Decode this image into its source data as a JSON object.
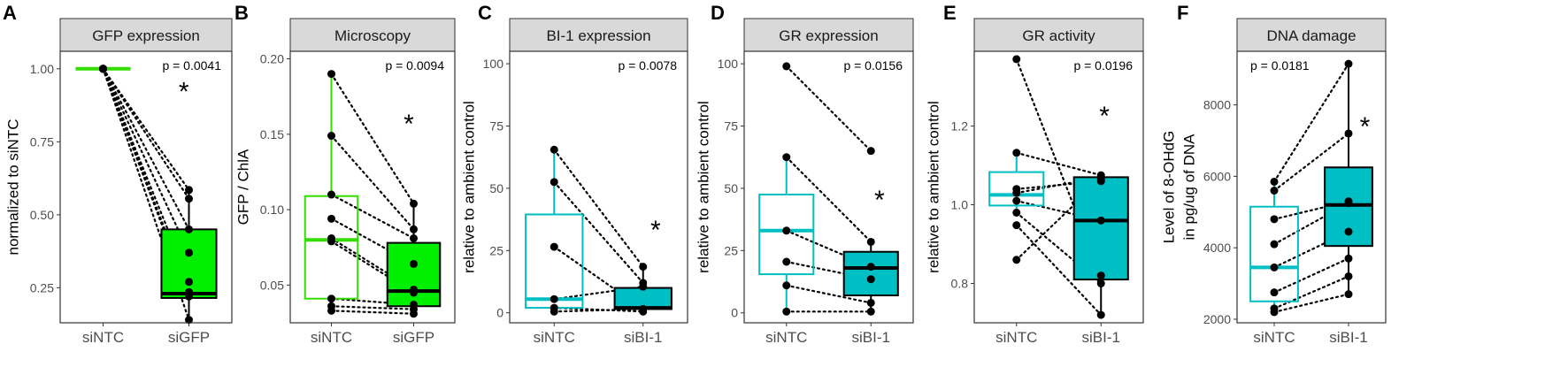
{
  "chart_data": [
    {
      "type": "boxplot",
      "panel_letter": "A",
      "title": "GFP expression",
      "ylabel_lines": [
        "normalized to siNTC"
      ],
      "categories": [
        "siNTC",
        "siGFP"
      ],
      "pvalue": "p = 0.0041",
      "significance": "*",
      "ylim": [
        0.13,
        1.06
      ],
      "yticks": [
        0.25,
        0.5,
        0.75,
        1.0
      ],
      "ytick_labels": [
        "0.25",
        "0.50",
        "0.75",
        "1.00"
      ],
      "fill": [
        "none",
        "#00ee00"
      ],
      "stroke": [
        "#33dd00",
        "#000000"
      ],
      "boxes": [
        {
          "q1": 1.0,
          "median": 1.0,
          "q3": 1.0,
          "min": 1.0,
          "max": 1.0
        },
        {
          "q1": 0.215,
          "median": 0.23,
          "q3": 0.45,
          "min": 0.14,
          "max": 0.585
        }
      ],
      "pairs": [
        [
          1.0,
          0.14
        ],
        [
          1.0,
          0.22
        ],
        [
          1.0,
          0.235
        ],
        [
          1.0,
          0.27
        ],
        [
          1.0,
          0.37
        ],
        [
          1.0,
          0.45
        ],
        [
          1.0,
          0.555
        ],
        [
          1.0,
          0.585
        ]
      ]
    },
    {
      "type": "boxplot",
      "panel_letter": "B",
      "title": "Microscopy",
      "ylabel_lines": [
        "GFP / ChlA"
      ],
      "categories": [
        "siNTC",
        "siGFP"
      ],
      "pvalue": "p = 0.0094",
      "significance": "*",
      "ylim": [
        0.025,
        0.205
      ],
      "yticks": [
        0.05,
        0.1,
        0.15,
        0.2
      ],
      "ytick_labels": [
        "0.05",
        "0.10",
        "0.15",
        "0.20"
      ],
      "fill": [
        "none",
        "#00ee00"
      ],
      "stroke": [
        "#33dd00",
        "#000000"
      ],
      "boxes": [
        {
          "q1": 0.041,
          "median": 0.08,
          "q3": 0.109,
          "min": 0.033,
          "max": 0.19
        },
        {
          "q1": 0.036,
          "median": 0.046,
          "q3": 0.078,
          "min": 0.031,
          "max": 0.104
        }
      ],
      "pairs": [
        [
          0.19,
          0.104
        ],
        [
          0.149,
          0.087
        ],
        [
          0.11,
          0.081
        ],
        [
          0.094,
          0.064
        ],
        [
          0.081,
          0.047
        ],
        [
          0.079,
          0.045
        ],
        [
          0.041,
          0.037
        ],
        [
          0.036,
          0.034
        ],
        [
          0.033,
          0.031
        ]
      ]
    },
    {
      "type": "boxplot",
      "panel_letter": "C",
      "title": "BI-1 expression",
      "ylabel_lines": [
        "relative to ambient control"
      ],
      "categories": [
        "siNTC",
        "siBI-1"
      ],
      "pvalue": "p = 0.0078",
      "significance": "*",
      "ylim": [
        -4,
        105
      ],
      "yticks": [
        0,
        25,
        50,
        75,
        100
      ],
      "ytick_labels": [
        "0",
        "25",
        "50",
        "75",
        "100"
      ],
      "fill": [
        "none",
        "#00bfc4"
      ],
      "stroke": [
        "#00bfc4",
        "#000000"
      ],
      "boxes": [
        {
          "q1": 2,
          "median": 5.5,
          "q3": 39.5,
          "min": 0.5,
          "max": 65.5
        },
        {
          "q1": 1.5,
          "median": 2,
          "q3": 10,
          "min": 0.5,
          "max": 18.5
        }
      ],
      "pairs": [
        [
          65.5,
          18.5
        ],
        [
          52.5,
          12
        ],
        [
          26.5,
          1.5
        ],
        [
          5.5,
          10.5
        ],
        [
          2,
          0.5
        ],
        [
          0.5,
          1.5
        ]
      ]
    },
    {
      "type": "boxplot",
      "panel_letter": "D",
      "title": "GR expression",
      "ylabel_lines": [
        "relative to ambient control"
      ],
      "categories": [
        "siNTC",
        "siBI-1"
      ],
      "pvalue": "p = 0.0156",
      "significance": "*",
      "ylim": [
        -4,
        105
      ],
      "yticks": [
        0,
        25,
        50,
        75,
        100
      ],
      "ytick_labels": [
        "0",
        "25",
        "50",
        "75",
        "100"
      ],
      "fill": [
        "none",
        "#00bfc4"
      ],
      "stroke": [
        "#00bfc4",
        "#000000"
      ],
      "boxes": [
        {
          "q1": 15.5,
          "median": 33,
          "q3": 47.5,
          "min": 0.5,
          "max": 62.5
        },
        {
          "q1": 7,
          "median": 18,
          "q3": 24.5,
          "min": 0.5,
          "max": 28.5
        }
      ],
      "pairs": [
        [
          99,
          65
        ],
        [
          62.5,
          28.5
        ],
        [
          33,
          18.5
        ],
        [
          20.5,
          13.5
        ],
        [
          11,
          4
        ],
        [
          0.5,
          0.5
        ]
      ]
    },
    {
      "type": "boxplot",
      "panel_letter": "E",
      "title": "GR activity",
      "ylabel_lines": [
        "relative to ambient control"
      ],
      "categories": [
        "siNTC",
        "siBI-1"
      ],
      "pvalue": "p = 0.0196",
      "significance": "*",
      "ylim": [
        0.7,
        1.39
      ],
      "yticks": [
        0.8,
        1.0,
        1.2
      ],
      "ytick_labels": [
        "0.8",
        "1.0",
        "1.2"
      ],
      "fill": [
        "none",
        "#00bfc4"
      ],
      "stroke": [
        "#00bfc4",
        "#000000"
      ],
      "boxes": [
        {
          "q1": 0.998,
          "median": 1.025,
          "q3": 1.083,
          "min": 0.978,
          "max": 1.132
        },
        {
          "q1": 0.81,
          "median": 0.96,
          "q3": 1.07,
          "min": 0.72,
          "max": 1.075
        }
      ],
      "pairs": [
        [
          1.37,
          0.82
        ],
        [
          1.132,
          1.075
        ],
        [
          1.04,
          1.06
        ],
        [
          1.03,
          1.07
        ],
        [
          1.01,
          0.96
        ],
        [
          0.98,
          0.8
        ],
        [
          0.948,
          0.72
        ],
        [
          0.86,
          1.065
        ]
      ]
    },
    {
      "type": "boxplot",
      "panel_letter": "F",
      "title": "DNA damage",
      "ylabel_lines": [
        "Level of 8-OHdG",
        "in pg/ug of DNA"
      ],
      "categories": [
        "siNTC",
        "siBI-1"
      ],
      "pvalue": "p = 0.0181",
      "significance": "*",
      "ylim": [
        1900,
        9500
      ],
      "yticks": [
        2000,
        4000,
        6000,
        8000
      ],
      "ytick_labels": [
        "2000",
        "4000",
        "6000",
        "8000"
      ],
      "fill": [
        "none",
        "#00bfc4"
      ],
      "stroke": [
        "#00bfc4",
        "#000000"
      ],
      "boxes": [
        {
          "q1": 2500,
          "median": 3450,
          "q3": 5150,
          "min": 2200,
          "max": 5850
        },
        {
          "q1": 4050,
          "median": 5200,
          "q3": 6250,
          "min": 2700,
          "max": 9150
        }
      ],
      "pairs": [
        [
          5850,
          9150
        ],
        [
          5600,
          7200
        ],
        [
          4800,
          5300
        ],
        [
          4100,
          5250
        ],
        [
          3450,
          4450
        ],
        [
          2750,
          3700
        ],
        [
          2300,
          3200
        ],
        [
          2200,
          2700
        ]
      ]
    }
  ]
}
